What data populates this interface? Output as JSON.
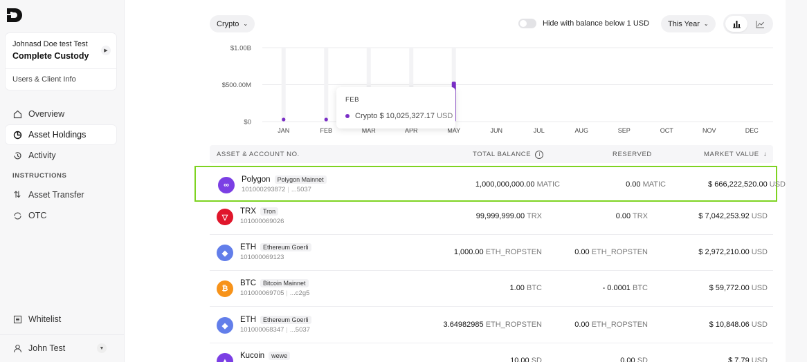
{
  "sidebar": {
    "client": {
      "name": "Johnasd Doe test Test",
      "subtitle": "Complete Custody",
      "link": "Users & Client Info"
    },
    "nav": [
      {
        "label": "Overview",
        "icon": "home-icon"
      },
      {
        "label": "Asset Holdings",
        "icon": "pie-chart-icon",
        "active": true
      },
      {
        "label": "Activity",
        "icon": "history-icon"
      }
    ],
    "section_label": "INSTRUCTIONS",
    "instructions": [
      {
        "label": "Asset Transfer",
        "icon": "transfer-icon"
      },
      {
        "label": "OTC",
        "icon": "refresh-icon"
      }
    ],
    "whitelist": "Whitelist",
    "user": "John Test"
  },
  "toolbar": {
    "asset_filter": "Crypto",
    "hide_small_label": "Hide with balance below 1 USD",
    "hide_small_on": false,
    "period": "This Year",
    "view": "bar"
  },
  "chart_data": {
    "type": "bar",
    "categories": [
      "JAN",
      "FEB",
      "MAR",
      "APR",
      "MAY",
      "JUN",
      "JUL",
      "AUG",
      "SEP",
      "OCT",
      "NOV",
      "DEC"
    ],
    "series": [
      {
        "name": "Crypto",
        "values": [
          10025327.17,
          10025327.17,
          null,
          null,
          540000000,
          null,
          null,
          null,
          null,
          null,
          null,
          null
        ]
      }
    ],
    "yticks": [
      "$0",
      "$500.00M",
      "$1.00B"
    ],
    "ylim": [
      0,
      1000000000
    ],
    "grid": true,
    "color": "#7a2fc6",
    "tooltip": {
      "month": "FEB",
      "series": "Crypto",
      "value": "$ 10,025,327.17",
      "unit": "USD"
    }
  },
  "table": {
    "headers": {
      "asset": "ASSET & ACCOUNT NO.",
      "total": "TOTAL BALANCE",
      "reserved": "RESERVED",
      "market": "MARKET VALUE"
    },
    "rows": [
      {
        "name": "Polygon",
        "network": "Polygon Mainnet",
        "account": "101000293872",
        "addr": "...5037",
        "total": "1,000,000,000.00",
        "total_unit": "MATIC",
        "reserved": "0.00",
        "reserved_unit": "MATIC",
        "market": "$ 666,222,520.00",
        "market_unit": "USD",
        "icon": "polygon-icon",
        "color": "#7b3fe4",
        "glyph": "∞"
      },
      {
        "name": "TRX",
        "network": "Tron",
        "account": "101000069026",
        "addr": "",
        "total": "99,999,999.00",
        "total_unit": "TRX",
        "reserved": "0.00",
        "reserved_unit": "TRX",
        "market": "$ 7,042,253.92",
        "market_unit": "USD",
        "icon": "tron-icon",
        "color": "#e0162b",
        "glyph": "▽"
      },
      {
        "name": "ETH",
        "network": "Ethereum Goerli",
        "account": "101000069123",
        "addr": "",
        "total": "1,000.00",
        "total_unit": "ETH_ROPSTEN",
        "reserved": "0.00",
        "reserved_unit": "ETH_ROPSTEN",
        "market": "$ 2,972,210.00",
        "market_unit": "USD",
        "icon": "ethereum-icon",
        "color": "#627eea",
        "glyph": "◆"
      },
      {
        "name": "BTC",
        "network": "Bitcoin Mainnet",
        "account": "101000069705",
        "addr": "...c2g5",
        "total": "1.00",
        "total_unit": "BTC",
        "reserved": "- 0.0001",
        "reserved_unit": "BTC",
        "market": "$ 59,772.00",
        "market_unit": "USD",
        "icon": "bitcoin-icon",
        "color": "#f7931a",
        "glyph": "₿"
      },
      {
        "name": "ETH",
        "network": "Ethereum Goerli",
        "account": "101000068347",
        "addr": "...5037",
        "total": "3.64982985",
        "total_unit": "ETH_ROPSTEN",
        "reserved": "0.00",
        "reserved_unit": "ETH_ROPSTEN",
        "market": "$ 10,848.06",
        "market_unit": "USD",
        "icon": "ethereum-icon",
        "color": "#627eea",
        "glyph": "◆"
      },
      {
        "name": "Kucoin",
        "network": "wewe",
        "account": "",
        "addr": "",
        "total": "10.00",
        "total_unit": "SD",
        "reserved": "0.00",
        "reserved_unit": "SD",
        "market": "$ 7.79",
        "market_unit": "USD",
        "icon": "kucoin-icon",
        "color": "#7b3fe4",
        "glyph": "▲"
      }
    ]
  }
}
